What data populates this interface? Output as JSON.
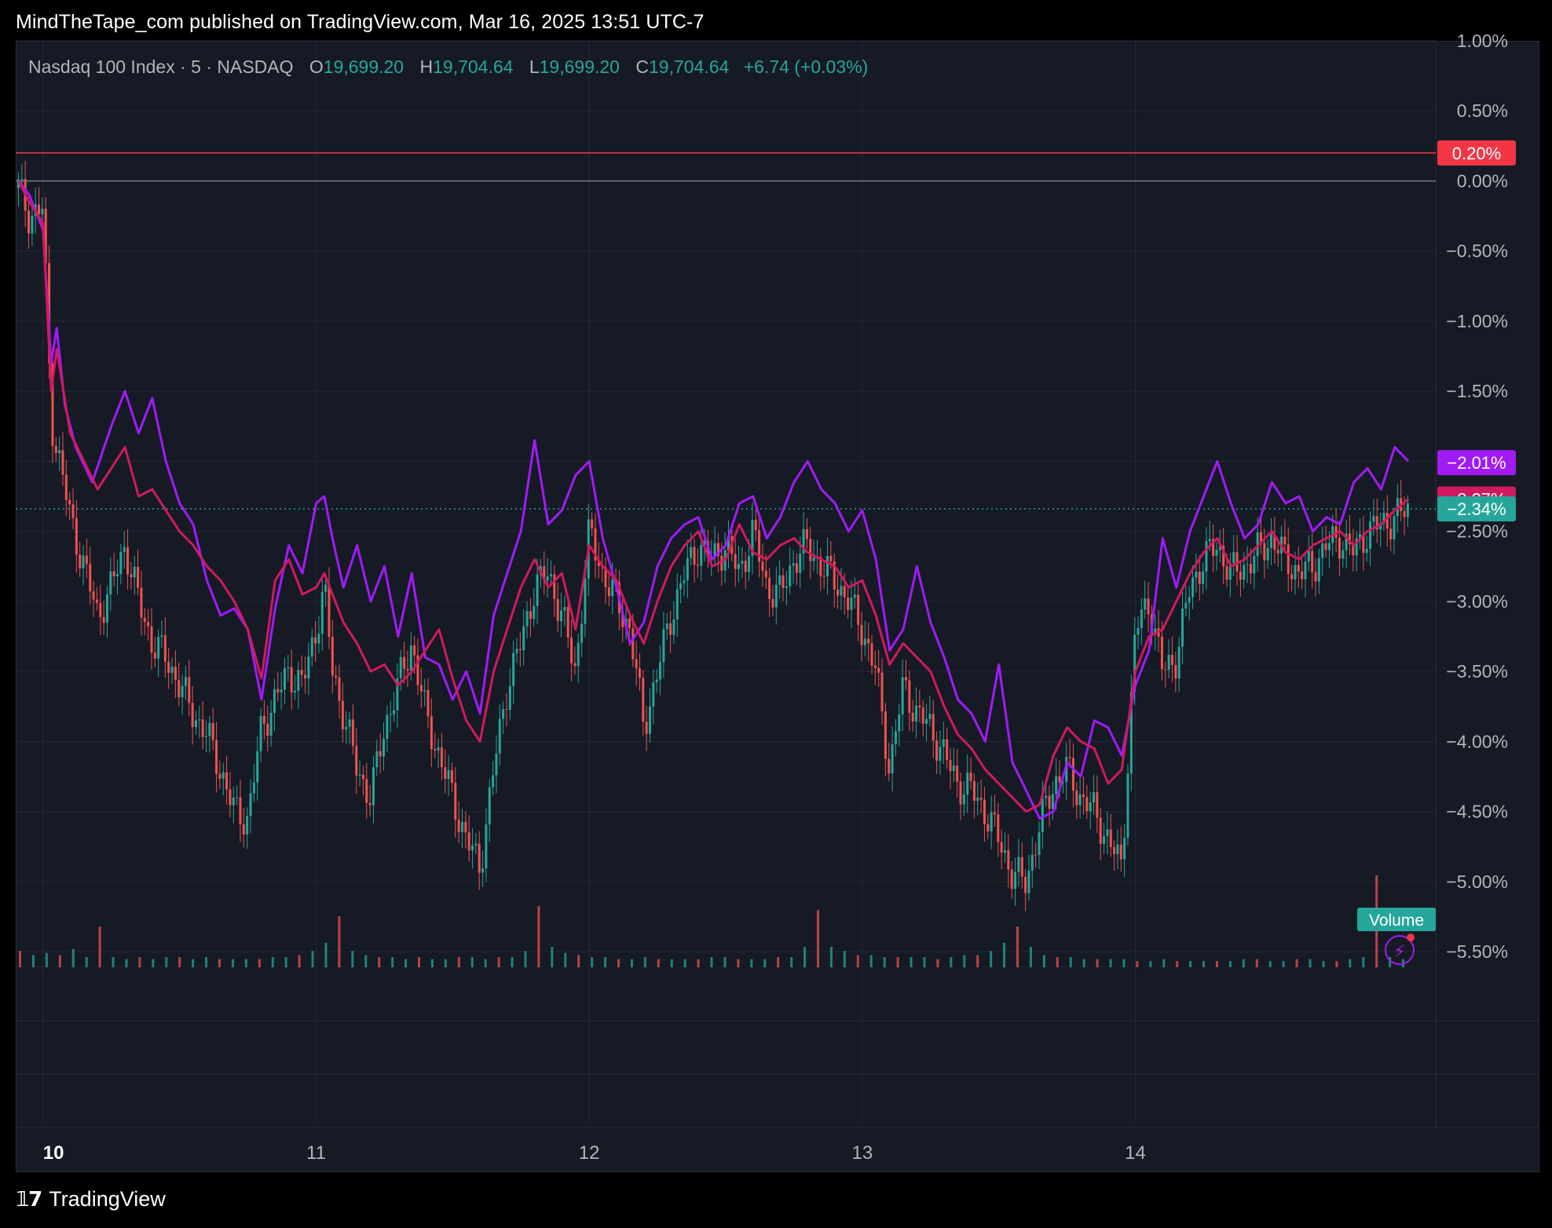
{
  "header": {
    "attribution": "MindTheTape_com published on TradingView.com, Mar 16, 2025 13:51 UTC-7"
  },
  "legend": {
    "symbol": "Nasdaq 100 Index · 5 · NASDAQ",
    "open_label": "O",
    "open": "19,699.20",
    "high_label": "H",
    "high": "19,704.64",
    "low_label": "L",
    "low": "19,699.20",
    "close_label": "C",
    "close": "19,704.64",
    "change": "+6.74 (+0.03%)"
  },
  "footer": {
    "brand": "TradingView",
    "logo_icon": "tradingview-logo-icon"
  },
  "colors": {
    "background": "#161a25",
    "grid": "#242836",
    "up": "#26a69a",
    "down": "#ef5350",
    "purple": "#a11bf5",
    "magenta": "#cf1a5f",
    "red_line": "#f23645",
    "teal_line": "#26a69a",
    "text": "#b2b5be"
  },
  "chart_data": {
    "type": "line",
    "ylabel": "",
    "ylim": [
      -5.6,
      1.0
    ],
    "y_scale": "percent",
    "yticks": [
      "1.00%",
      "0.50%",
      "0.00%",
      "−0.50%",
      "−1.00%",
      "−1.50%",
      "−2.00%",
      "−2.50%",
      "−3.00%",
      "−3.50%",
      "−4.00%",
      "−4.50%",
      "−5.00%",
      "−5.50%"
    ],
    "ytick_values": [
      1.0,
      0.5,
      0.0,
      -0.5,
      -1.0,
      -1.5,
      -2.0,
      -2.5,
      -3.0,
      -3.5,
      -4.0,
      -4.5,
      -5.0,
      -5.5
    ],
    "xticks": [
      "10",
      "11",
      "12",
      "13",
      "14"
    ],
    "xtick_values": [
      0,
      1,
      2,
      3,
      4
    ],
    "xlim": [
      -0.1,
      5.1
    ],
    "horizontal_lines": [
      {
        "value": 0.2,
        "label": "0.20%",
        "color": "#f23645"
      },
      {
        "value": 0.0,
        "color": "#787b86"
      },
      {
        "value": -2.34,
        "label": "−2.34%",
        "color": "#26a69a",
        "dotted": true
      }
    ],
    "series": [
      {
        "color": "#a11bf5",
        "last_label": "−2.01%",
        "x": [
          -0.09,
          -0.05,
          0.0,
          0.03,
          0.05,
          0.08,
          0.12,
          0.18,
          0.25,
          0.3,
          0.35,
          0.4,
          0.45,
          0.5,
          0.55,
          0.6,
          0.65,
          0.7,
          0.75,
          0.8,
          0.85,
          0.9,
          0.95,
          1.0,
          1.03,
          1.06,
          1.1,
          1.15,
          1.2,
          1.25,
          1.3,
          1.35,
          1.4,
          1.45,
          1.5,
          1.55,
          1.6,
          1.65,
          1.7,
          1.75,
          1.8,
          1.85,
          1.9,
          1.95,
          2.0,
          2.05,
          2.1,
          2.15,
          2.2,
          2.25,
          2.3,
          2.35,
          2.4,
          2.45,
          2.5,
          2.55,
          2.6,
          2.65,
          2.7,
          2.75,
          2.8,
          2.85,
          2.9,
          2.95,
          3.0,
          3.05,
          3.1,
          3.15,
          3.2,
          3.25,
          3.3,
          3.35,
          3.4,
          3.45,
          3.5,
          3.55,
          3.6,
          3.65,
          3.7,
          3.75,
          3.8,
          3.85,
          3.9,
          3.95,
          4.0,
          4.05,
          4.1,
          4.15,
          4.2,
          4.25,
          4.3,
          4.35,
          4.4,
          4.45,
          4.5,
          4.55,
          4.6,
          4.65,
          4.7,
          4.75,
          4.8,
          4.85,
          4.9,
          4.95,
          5.0
        ],
        "y": [
          0.0,
          -0.1,
          -0.35,
          -1.3,
          -1.05,
          -1.6,
          -1.9,
          -2.15,
          -1.75,
          -1.5,
          -1.8,
          -1.55,
          -2.0,
          -2.3,
          -2.45,
          -2.85,
          -3.1,
          -3.05,
          -3.2,
          -3.7,
          -3.05,
          -2.6,
          -2.8,
          -2.3,
          -2.25,
          -2.55,
          -2.9,
          -2.6,
          -3.0,
          -2.75,
          -3.25,
          -2.8,
          -3.4,
          -3.45,
          -3.7,
          -3.5,
          -3.8,
          -3.1,
          -2.8,
          -2.5,
          -1.85,
          -2.45,
          -2.35,
          -2.1,
          -2.0,
          -2.55,
          -2.9,
          -3.3,
          -3.15,
          -2.75,
          -2.55,
          -2.45,
          -2.4,
          -2.7,
          -2.6,
          -2.3,
          -2.25,
          -2.55,
          -2.4,
          -2.15,
          -2.0,
          -2.2,
          -2.3,
          -2.5,
          -2.35,
          -2.7,
          -3.35,
          -3.2,
          -2.75,
          -3.15,
          -3.4,
          -3.7,
          -3.8,
          -4.0,
          -3.45,
          -4.15,
          -4.35,
          -4.55,
          -4.5,
          -4.15,
          -4.25,
          -3.85,
          -3.9,
          -4.1,
          -3.6,
          -3.35,
          -2.55,
          -2.9,
          -2.5,
          -2.25,
          -2.0,
          -2.3,
          -2.55,
          -2.45,
          -2.15,
          -2.3,
          -2.25,
          -2.5,
          -2.4,
          -2.45,
          -2.15,
          -2.05,
          -2.2,
          -1.9,
          -2.0
        ]
      },
      {
        "color": "#cf1a5f",
        "last_label": "−2.27%",
        "x": [
          -0.09,
          -0.05,
          0.0,
          0.03,
          0.05,
          0.1,
          0.15,
          0.2,
          0.25,
          0.3,
          0.35,
          0.4,
          0.45,
          0.5,
          0.55,
          0.6,
          0.65,
          0.7,
          0.75,
          0.8,
          0.85,
          0.9,
          0.95,
          1.0,
          1.03,
          1.06,
          1.1,
          1.15,
          1.2,
          1.25,
          1.3,
          1.35,
          1.4,
          1.45,
          1.5,
          1.55,
          1.6,
          1.65,
          1.7,
          1.75,
          1.8,
          1.85,
          1.9,
          1.95,
          2.0,
          2.05,
          2.1,
          2.15,
          2.2,
          2.25,
          2.3,
          2.35,
          2.4,
          2.45,
          2.5,
          2.55,
          2.6,
          2.65,
          2.7,
          2.75,
          2.8,
          2.85,
          2.9,
          2.95,
          3.0,
          3.05,
          3.1,
          3.15,
          3.2,
          3.25,
          3.3,
          3.35,
          3.4,
          3.45,
          3.5,
          3.55,
          3.6,
          3.65,
          3.7,
          3.75,
          3.8,
          3.85,
          3.9,
          3.95,
          4.0,
          4.05,
          4.1,
          4.15,
          4.2,
          4.25,
          4.3,
          4.35,
          4.4,
          4.45,
          4.5,
          4.55,
          4.6,
          4.65,
          4.7,
          4.75,
          4.8,
          4.85,
          4.9,
          4.95,
          5.0
        ],
        "y": [
          0.0,
          -0.15,
          -0.3,
          -1.5,
          -1.2,
          -1.8,
          -2.0,
          -2.2,
          -2.05,
          -1.9,
          -2.25,
          -2.2,
          -2.35,
          -2.5,
          -2.6,
          -2.75,
          -2.85,
          -3.0,
          -3.2,
          -3.55,
          -2.85,
          -2.7,
          -2.95,
          -2.9,
          -2.8,
          -2.95,
          -3.15,
          -3.3,
          -3.5,
          -3.45,
          -3.6,
          -3.5,
          -3.35,
          -3.2,
          -3.55,
          -3.85,
          -4.0,
          -3.5,
          -3.2,
          -2.9,
          -2.7,
          -2.9,
          -2.8,
          -3.2,
          -2.6,
          -2.75,
          -2.85,
          -3.1,
          -3.3,
          -3.0,
          -2.75,
          -2.6,
          -2.5,
          -2.75,
          -2.7,
          -2.45,
          -2.65,
          -2.7,
          -2.6,
          -2.55,
          -2.65,
          -2.7,
          -2.75,
          -2.9,
          -2.85,
          -3.1,
          -3.45,
          -3.3,
          -3.4,
          -3.5,
          -3.75,
          -3.95,
          -4.05,
          -4.2,
          -4.3,
          -4.4,
          -4.5,
          -4.45,
          -4.1,
          -3.9,
          -4.0,
          -4.05,
          -4.3,
          -4.2,
          -3.5,
          -3.25,
          -3.2,
          -3.0,
          -2.8,
          -2.65,
          -2.55,
          -2.75,
          -2.7,
          -2.6,
          -2.5,
          -2.65,
          -2.7,
          -2.6,
          -2.55,
          -2.5,
          -2.6,
          -2.5,
          -2.45,
          -2.35,
          -2.27
        ]
      }
    ],
    "candles_note_legend": "Nasdaq 100 Index · 5 · NASDAQ",
    "price_series_close_path": {
      "x": [
        -0.09,
        -0.05,
        0.0,
        0.03,
        0.05,
        0.1,
        0.15,
        0.2,
        0.25,
        0.3,
        0.35,
        0.4,
        0.45,
        0.5,
        0.55,
        0.6,
        0.65,
        0.7,
        0.75,
        0.8,
        0.85,
        0.9,
        0.95,
        1.0,
        1.03,
        1.06,
        1.1,
        1.15,
        1.2,
        1.25,
        1.3,
        1.35,
        1.4,
        1.45,
        1.5,
        1.55,
        1.6,
        1.65,
        1.7,
        1.75,
        1.8,
        1.85,
        1.9,
        1.95,
        2.0,
        2.05,
        2.1,
        2.15,
        2.2,
        2.25,
        2.3,
        2.35,
        2.4,
        2.45,
        2.5,
        2.55,
        2.6,
        2.65,
        2.7,
        2.75,
        2.8,
        2.85,
        2.9,
        2.95,
        3.0,
        3.05,
        3.1,
        3.15,
        3.2,
        3.25,
        3.3,
        3.35,
        3.4,
        3.45,
        3.5,
        3.55,
        3.6,
        3.65,
        3.7,
        3.75,
        3.8,
        3.85,
        3.9,
        3.95,
        4.0,
        4.05,
        4.1,
        4.15,
        4.2,
        4.25,
        4.3,
        4.35,
        4.4,
        4.45,
        4.5,
        4.55,
        4.6,
        4.65,
        4.7,
        4.75,
        4.8,
        4.85,
        4.9,
        4.95,
        5.0
      ],
      "y": [
        -0.05,
        -0.25,
        -0.2,
        -1.7,
        -1.9,
        -2.4,
        -2.75,
        -3.1,
        -2.9,
        -2.6,
        -3.0,
        -3.3,
        -3.4,
        -3.6,
        -3.8,
        -3.95,
        -4.2,
        -4.5,
        -4.55,
        -3.9,
        -3.7,
        -3.5,
        -3.6,
        -3.2,
        -2.9,
        -3.5,
        -3.8,
        -4.2,
        -4.4,
        -3.9,
        -3.6,
        -3.3,
        -3.8,
        -4.1,
        -4.4,
        -4.7,
        -4.9,
        -4.2,
        -3.6,
        -3.3,
        -2.9,
        -2.8,
        -3.1,
        -3.5,
        -2.5,
        -2.8,
        -3.0,
        -3.2,
        -3.9,
        -3.5,
        -3.1,
        -2.8,
        -2.6,
        -2.7,
        -2.6,
        -2.8,
        -2.5,
        -2.9,
        -2.95,
        -2.7,
        -2.6,
        -2.75,
        -2.85,
        -3.0,
        -3.2,
        -3.5,
        -4.2,
        -3.6,
        -3.8,
        -3.9,
        -4.1,
        -4.3,
        -4.35,
        -4.5,
        -4.7,
        -4.95,
        -5.0,
        -4.6,
        -4.3,
        -4.2,
        -4.4,
        -4.5,
        -4.7,
        -4.9,
        -3.2,
        -3.0,
        -3.5,
        -3.4,
        -2.9,
        -2.7,
        -2.6,
        -2.8,
        -2.75,
        -2.65,
        -2.55,
        -2.7,
        -2.8,
        -2.75,
        -2.6,
        -2.55,
        -2.65,
        -2.5,
        -2.45,
        -2.4,
        -2.34
      ]
    },
    "volume_label": "Volume",
    "volume_values_relative": [
      0.08,
      0.06,
      0.07,
      0.06,
      0.09,
      0.05,
      0.2,
      0.05,
      0.04,
      0.05,
      0.04,
      0.05,
      0.05,
      0.04,
      0.05,
      0.04,
      0.04,
      0.04,
      0.04,
      0.05,
      0.05,
      0.06,
      0.08,
      0.12,
      0.25,
      0.08,
      0.06,
      0.05,
      0.05,
      0.04,
      0.05,
      0.04,
      0.04,
      0.05,
      0.05,
      0.04,
      0.05,
      0.05,
      0.08,
      0.3,
      0.1,
      0.07,
      0.06,
      0.05,
      0.05,
      0.04,
      0.04,
      0.05,
      0.04,
      0.04,
      0.04,
      0.04,
      0.05,
      0.05,
      0.04,
      0.04,
      0.04,
      0.05,
      0.05,
      0.1,
      0.28,
      0.1,
      0.08,
      0.06,
      0.06,
      0.05,
      0.05,
      0.05,
      0.05,
      0.04,
      0.05,
      0.06,
      0.06,
      0.08,
      0.12,
      0.2,
      0.1,
      0.06,
      0.05,
      0.05,
      0.04,
      0.04,
      0.04,
      0.04,
      0.03,
      0.03,
      0.04,
      0.03,
      0.03,
      0.03,
      0.03,
      0.03,
      0.04,
      0.04,
      0.03,
      0.03,
      0.04,
      0.04,
      0.03,
      0.03,
      0.04,
      0.05,
      0.45,
      0.05,
      0.04
    ]
  }
}
